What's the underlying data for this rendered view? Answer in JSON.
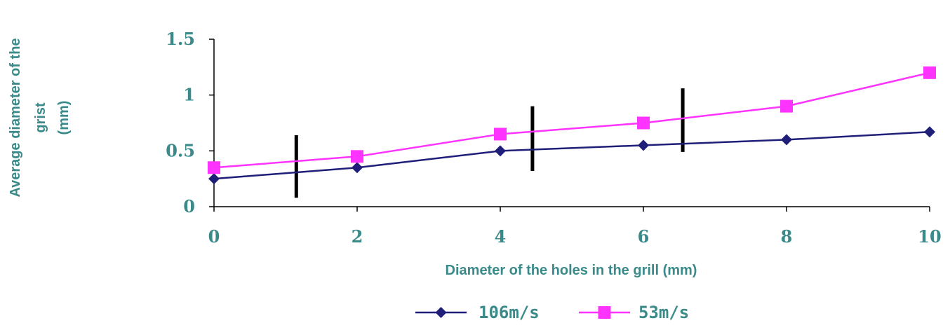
{
  "chart_data": {
    "type": "line",
    "x": [
      0,
      2,
      4,
      6,
      8,
      10
    ],
    "xlabel": "Diameter of the holes in the grill (mm)",
    "ylabel": [
      "Average diameter of the",
      "grist",
      "(mm)"
    ],
    "xlim": [
      0,
      10
    ],
    "ylim": [
      0,
      1.5
    ],
    "xticks": [
      "0",
      "2",
      "4",
      "6",
      "8",
      "10"
    ],
    "yticks": [
      "0",
      "0.5",
      "1",
      "1.5"
    ],
    "grid": false,
    "legend_position": "bottom",
    "series": [
      {
        "name": "106m/s",
        "values": [
          0.25,
          0.35,
          0.5,
          0.55,
          0.6,
          0.67
        ],
        "color": "#1f1f7a",
        "marker": "diamond"
      },
      {
        "name": "53m/s",
        "values": [
          0.35,
          0.45,
          0.65,
          0.75,
          0.9,
          1.2
        ],
        "color": "#ff33ff",
        "marker": "square"
      }
    ],
    "vertical_markers": [
      {
        "x": 1.15,
        "y_range": [
          0.08,
          0.64
        ]
      },
      {
        "x": 4.45,
        "y_range": [
          0.32,
          0.9
        ]
      },
      {
        "x": 6.55,
        "y_range": [
          0.49,
          1.06
        ]
      }
    ],
    "colors": {
      "axis": "#000000",
      "text": "#3a8a8a",
      "marker_bar": "#000000"
    }
  }
}
